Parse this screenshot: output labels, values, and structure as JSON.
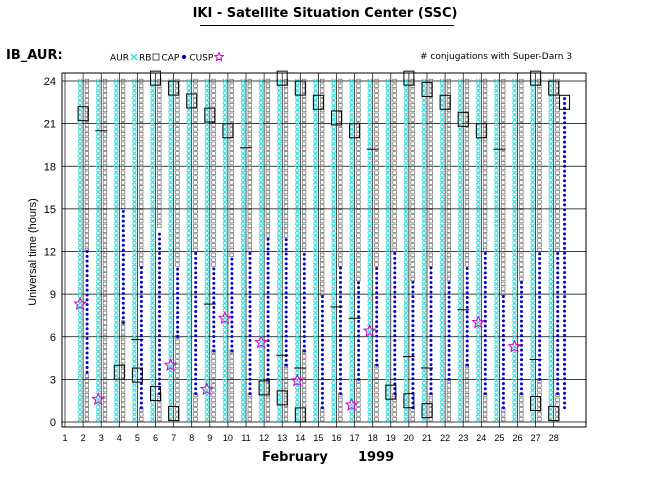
{
  "page": {
    "title": "IKI - Satellite Situation Center (SSC)",
    "station": "IB_AUR:",
    "month": "February",
    "year": "1999",
    "conjugation_note": "# conjugations with Super-Darn 3",
    "legend": [
      {
        "label": "AUR",
        "symbol": "x",
        "color": "#33dddd"
      },
      {
        "label": "RB",
        "symbol": "square-small",
        "color": "#555555"
      },
      {
        "label": "CAP",
        "symbol": "dot",
        "color": "#0000cc"
      },
      {
        "label": "CUSP",
        "symbol": "star",
        "color": "#cc00cc"
      }
    ]
  },
  "chart_data": {
    "type": "scatter",
    "xlabel": "",
    "ylabel": "Universal time (hours)",
    "xlim": [
      1,
      28
    ],
    "ylim": [
      0,
      24
    ],
    "x_ticks": [
      1,
      2,
      3,
      4,
      5,
      6,
      7,
      8,
      9,
      10,
      11,
      12,
      13,
      14,
      15,
      16,
      17,
      18,
      19,
      20,
      21,
      22,
      23,
      24,
      25,
      26,
      27,
      28
    ],
    "y_ticks": [
      0,
      3,
      6,
      9,
      12,
      15,
      18,
      21,
      24
    ],
    "grid": true,
    "colors": {
      "AUR": "#33dddd",
      "RB": "#555555",
      "CAP": "#0000cc",
      "CUSP": "#cc00cc",
      "conjugation": "#000000"
    },
    "days": [
      {
        "day": 2,
        "cap": [
          [
            3.5,
            12
          ]
        ],
        "cusp": [
          8.3
        ],
        "conj": [
          21.7
        ],
        "conj_tick": []
      },
      {
        "day": 3,
        "cap": [],
        "cusp": [
          1.6
        ],
        "conj": [],
        "conj_tick": [
          20.5
        ]
      },
      {
        "day": 4,
        "cap": [
          [
            7,
            15
          ]
        ],
        "cusp": [],
        "conj": [
          3.5
        ],
        "conj_tick": []
      },
      {
        "day": 5,
        "cap": [
          [
            1,
            11
          ]
        ],
        "cusp": [],
        "conj": [
          3.3
        ],
        "conj_tick": [
          5.8
        ]
      },
      {
        "day": 6,
        "cap": [
          [
            2,
            13.5
          ]
        ],
        "cusp": [],
        "conj": [
          2.0,
          24.2
        ],
        "conj_tick": []
      },
      {
        "day": 7,
        "cap": [
          [
            6,
            11
          ]
        ],
        "cusp": [
          4.0
        ],
        "conj": [
          0.6,
          23.5
        ],
        "conj_tick": []
      },
      {
        "day": 8,
        "cap": [
          [
            2,
            12
          ]
        ],
        "cusp": [],
        "conj": [
          22.6
        ],
        "conj_tick": []
      },
      {
        "day": 9,
        "cap": [
          [
            5,
            11
          ]
        ],
        "cusp": [
          2.3
        ],
        "conj": [
          21.6
        ],
        "conj_tick": [
          8.3
        ]
      },
      {
        "day": 10,
        "cap": [
          [
            5,
            11.5
          ]
        ],
        "cusp": [
          7.3
        ],
        "conj": [
          20.5
        ],
        "conj_tick": []
      },
      {
        "day": 11,
        "cap": [
          [
            2,
            12
          ]
        ],
        "cusp": [],
        "conj": [],
        "conj_tick": [
          19.3
        ]
      },
      {
        "day": 12,
        "cap": [
          [
            3,
            13
          ]
        ],
        "cusp": [
          5.6
        ],
        "conj": [
          2.4
        ],
        "conj_tick": []
      },
      {
        "day": 13,
        "cap": [
          [
            4,
            13
          ]
        ],
        "cusp": [],
        "conj": [
          1.7,
          24.2
        ],
        "conj_tick": [
          4.7
        ]
      },
      {
        "day": 14,
        "cap": [
          [
            5,
            12
          ]
        ],
        "cusp": [
          2.9
        ],
        "conj": [
          0.5,
          23.5
        ],
        "conj_tick": [
          3.8
        ]
      },
      {
        "day": 15,
        "cap": [
          [
            1,
            9
          ]
        ],
        "cusp": [],
        "conj": [
          22.5
        ],
        "conj_tick": []
      },
      {
        "day": 16,
        "cap": [
          [
            2,
            11
          ]
        ],
        "cusp": [],
        "conj": [
          21.4
        ],
        "conj_tick": [
          8.1
        ]
      },
      {
        "day": 17,
        "cap": [
          [
            3,
            10
          ]
        ],
        "cusp": [
          1.2
        ],
        "conj": [
          20.5
        ],
        "conj_tick": [
          7.3
        ]
      },
      {
        "day": 18,
        "cap": [
          [
            4,
            11
          ]
        ],
        "cusp": [
          6.4
        ],
        "conj": [],
        "conj_tick": [
          19.2
        ]
      },
      {
        "day": 19,
        "cap": [
          [
            2,
            12
          ]
        ],
        "cusp": [],
        "conj": [
          2.1
        ],
        "conj_tick": []
      },
      {
        "day": 20,
        "cap": [
          [
            1,
            10
          ]
        ],
        "cusp": [],
        "conj": [
          1.5,
          24.2
        ],
        "conj_tick": [
          4.6
        ]
      },
      {
        "day": 21,
        "cap": [
          [
            2,
            11
          ]
        ],
        "cusp": [],
        "conj": [
          0.8,
          23.4
        ],
        "conj_tick": [
          3.8
        ]
      },
      {
        "day": 22,
        "cap": [
          [
            3,
            10
          ]
        ],
        "cusp": [],
        "conj": [
          22.5
        ],
        "conj_tick": []
      },
      {
        "day": 23,
        "cap": [
          [
            4,
            11
          ]
        ],
        "cusp": [],
        "conj": [
          21.3
        ],
        "conj_tick": [
          7.9
        ]
      },
      {
        "day": 24,
        "cap": [
          [
            2,
            12
          ]
        ],
        "cusp": [
          7.0
        ],
        "conj": [
          20.5
        ],
        "conj_tick": []
      },
      {
        "day": 25,
        "cap": [
          [
            1,
            9
          ]
        ],
        "cusp": [],
        "conj": [],
        "conj_tick": [
          19.2
        ]
      },
      {
        "day": 26,
        "cap": [
          [
            2,
            10
          ]
        ],
        "cusp": [
          5.3
        ],
        "conj": [],
        "conj_tick": []
      },
      {
        "day": 27,
        "cap": [
          [
            3,
            12
          ]
        ],
        "cusp": [],
        "conj": [
          1.3,
          24.2
        ],
        "conj_tick": [
          4.4
        ]
      },
      {
        "day": 28,
        "cap": [
          [
            2,
            12
          ]
        ],
        "cusp": [],
        "conj": [
          0.6,
          23.5
        ],
        "conj_tick": []
      }
    ],
    "extra_columns": [
      {
        "x": 28.6,
        "cap": [
          [
            1,
            23
          ]
        ],
        "conj": [
          22.5
        ],
        "conj_tick": []
      }
    ]
  }
}
